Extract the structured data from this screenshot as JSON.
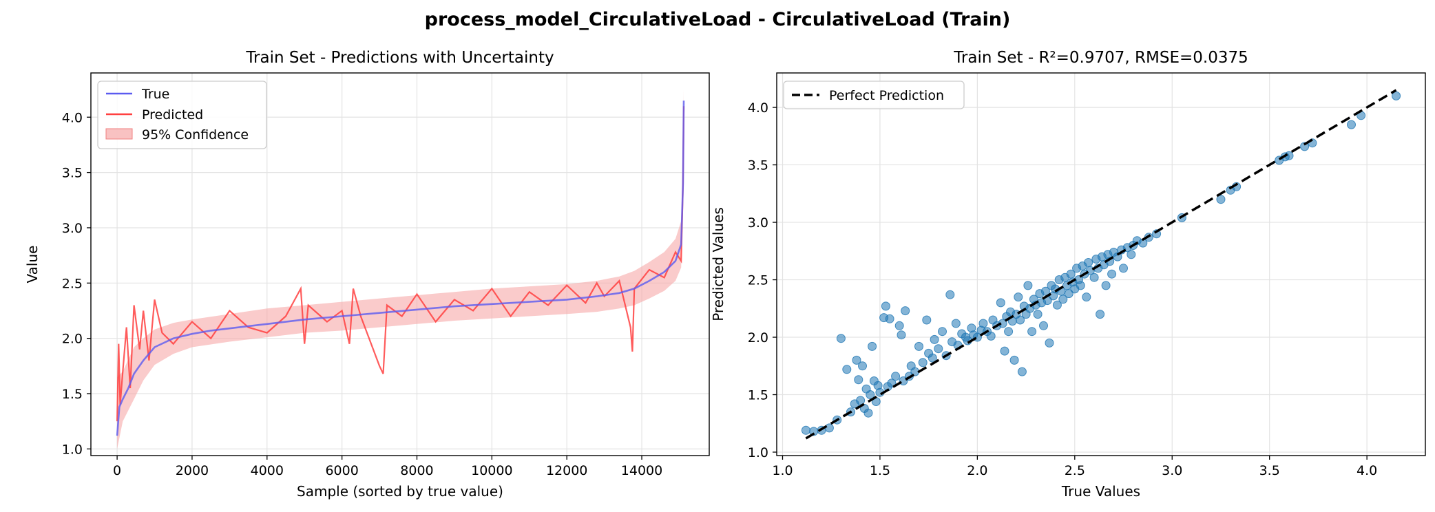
{
  "figure": {
    "title": "process_model_CirculativeLoad - CirculativeLoad (Train)"
  },
  "colors": {
    "true_line": "#5b5bf0",
    "predicted_line": "#ff4040",
    "confidence_band": "#f7a8a8",
    "scatter": "#1f77b4",
    "perfect_line": "#000000",
    "grid": "#e3e3e3"
  },
  "chart_data": [
    {
      "type": "line",
      "title": "Train Set - Predictions with Uncertainty",
      "xlabel": "Sample (sorted by true value)",
      "ylabel": "Value",
      "xlim": [
        -700,
        15800
      ],
      "ylim": [
        0.94,
        4.4
      ],
      "xticks": [
        0,
        2000,
        4000,
        6000,
        8000,
        10000,
        12000,
        14000
      ],
      "yticks": [
        1.0,
        1.5,
        2.0,
        2.5,
        3.0,
        3.5,
        4.0
      ],
      "grid": true,
      "legend": {
        "position": "top-left",
        "entries": [
          "True",
          "Predicted",
          "95% Confidence"
        ]
      },
      "series": [
        {
          "name": "True",
          "x": [
            0,
            60,
            150,
            300,
            450,
            700,
            1000,
            1500,
            2000,
            2500,
            3000,
            4000,
            5000,
            6000,
            7000,
            8000,
            9000,
            10000,
            11000,
            12000,
            12800,
            13400,
            13800,
            14200,
            14600,
            14900,
            15050,
            15100,
            15120
          ],
          "values": [
            1.12,
            1.38,
            1.45,
            1.55,
            1.68,
            1.8,
            1.92,
            2.0,
            2.04,
            2.07,
            2.09,
            2.13,
            2.17,
            2.2,
            2.23,
            2.26,
            2.29,
            2.31,
            2.33,
            2.35,
            2.38,
            2.41,
            2.45,
            2.52,
            2.6,
            2.7,
            2.85,
            3.4,
            4.15
          ]
        },
        {
          "name": "Predicted",
          "x": [
            0,
            40,
            80,
            150,
            250,
            350,
            450,
            600,
            700,
            850,
            1000,
            1200,
            1500,
            2000,
            2500,
            3000,
            3500,
            4000,
            4500,
            4900,
            5000,
            5100,
            5600,
            6000,
            6200,
            6300,
            6500,
            7000,
            7100,
            7200,
            7600,
            8000,
            8500,
            9000,
            9500,
            10000,
            10500,
            11000,
            11500,
            12000,
            12500,
            12800,
            13000,
            13400,
            13700,
            13750,
            13800,
            14200,
            14600,
            14900,
            15050,
            15100,
            15120
          ],
          "values": [
            1.25,
            1.95,
            1.4,
            1.7,
            2.1,
            1.55,
            2.3,
            1.9,
            2.25,
            1.8,
            2.35,
            2.05,
            1.95,
            2.15,
            2.0,
            2.25,
            2.1,
            2.05,
            2.2,
            2.45,
            1.95,
            2.3,
            2.15,
            2.25,
            1.95,
            2.45,
            2.2,
            1.75,
            1.68,
            2.3,
            2.2,
            2.4,
            2.15,
            2.35,
            2.25,
            2.45,
            2.2,
            2.42,
            2.3,
            2.48,
            2.32,
            2.5,
            2.38,
            2.52,
            2.1,
            1.88,
            2.45,
            2.62,
            2.55,
            2.78,
            2.7,
            3.4,
            4.1
          ]
        },
        {
          "name": "95% Confidence",
          "x": [
            0,
            150,
            450,
            700,
            1000,
            1500,
            2000,
            3000,
            4000,
            5000,
            6000,
            7000,
            8000,
            9000,
            10000,
            11000,
            12000,
            12800,
            13400,
            13800,
            14200,
            14600,
            14900,
            15050,
            15100,
            15120
          ],
          "lower": [
            1.0,
            1.25,
            1.45,
            1.62,
            1.76,
            1.86,
            1.92,
            1.97,
            2.01,
            2.05,
            2.07,
            2.1,
            2.13,
            2.16,
            2.18,
            2.2,
            2.22,
            2.24,
            2.27,
            2.3,
            2.36,
            2.43,
            2.52,
            2.64,
            3.15,
            3.95
          ],
          "upper": [
            1.65,
            1.7,
            1.92,
            2.0,
            2.08,
            2.14,
            2.17,
            2.22,
            2.27,
            2.3,
            2.33,
            2.36,
            2.39,
            2.42,
            2.45,
            2.47,
            2.49,
            2.52,
            2.56,
            2.61,
            2.69,
            2.78,
            2.9,
            3.06,
            3.65,
            4.25
          ]
        }
      ]
    },
    {
      "type": "scatter",
      "title": "Train Set - R²=0.9707, RMSE=0.0375",
      "xlabel": "True Values",
      "ylabel": "Predicted Values",
      "xlim": [
        0.97,
        4.3
      ],
      "ylim": [
        0.97,
        4.3
      ],
      "xticks": [
        1.0,
        1.5,
        2.0,
        2.5,
        3.0,
        3.5,
        4.0
      ],
      "yticks": [
        1.0,
        1.5,
        2.0,
        2.5,
        3.0,
        3.5,
        4.0
      ],
      "grid": true,
      "legend": {
        "position": "top-left",
        "entries": [
          "Perfect Prediction"
        ]
      },
      "perfect_line": [
        [
          1.12,
          1.12
        ],
        [
          4.15,
          4.15
        ]
      ],
      "series": [
        {
          "name": "",
          "points": [
            [
              1.12,
              1.19
            ],
            [
              1.16,
              1.18
            ],
            [
              1.2,
              1.19
            ],
            [
              1.24,
              1.21
            ],
            [
              1.28,
              1.28
            ],
            [
              1.3,
              1.99
            ],
            [
              1.33,
              1.72
            ],
            [
              1.35,
              1.35
            ],
            [
              1.37,
              1.42
            ],
            [
              1.38,
              1.8
            ],
            [
              1.39,
              1.63
            ],
            [
              1.4,
              1.45
            ],
            [
              1.41,
              1.75
            ],
            [
              1.42,
              1.38
            ],
            [
              1.43,
              1.55
            ],
            [
              1.44,
              1.34
            ],
            [
              1.45,
              1.5
            ],
            [
              1.46,
              1.92
            ],
            [
              1.47,
              1.62
            ],
            [
              1.48,
              1.44
            ],
            [
              1.49,
              1.58
            ],
            [
              1.5,
              1.52
            ],
            [
              1.52,
              2.17
            ],
            [
              1.53,
              2.27
            ],
            [
              1.54,
              1.57
            ],
            [
              1.55,
              2.16
            ],
            [
              1.56,
              1.6
            ],
            [
              1.58,
              1.66
            ],
            [
              1.6,
              2.1
            ],
            [
              1.61,
              2.02
            ],
            [
              1.62,
              1.62
            ],
            [
              1.63,
              2.23
            ],
            [
              1.65,
              1.66
            ],
            [
              1.66,
              1.75
            ],
            [
              1.68,
              1.7
            ],
            [
              1.7,
              1.92
            ],
            [
              1.72,
              1.78
            ],
            [
              1.74,
              2.15
            ],
            [
              1.75,
              1.86
            ],
            [
              1.77,
              1.82
            ],
            [
              1.78,
              1.98
            ],
            [
              1.8,
              1.9
            ],
            [
              1.82,
              2.05
            ],
            [
              1.84,
              1.84
            ],
            [
              1.86,
              2.37
            ],
            [
              1.87,
              1.96
            ],
            [
              1.89,
              2.12
            ],
            [
              1.9,
              1.93
            ],
            [
              1.92,
              2.03
            ],
            [
              1.94,
              2.0
            ],
            [
              1.95,
              1.97
            ],
            [
              1.97,
              2.08
            ],
            [
              1.98,
              2.02
            ],
            [
              2.0,
              2.0
            ],
            [
              2.02,
              2.06
            ],
            [
              2.03,
              2.12
            ],
            [
              2.05,
              2.05
            ],
            [
              2.07,
              2.01
            ],
            [
              2.08,
              2.15
            ],
            [
              2.1,
              2.1
            ],
            [
              2.12,
              2.3
            ],
            [
              2.13,
              2.12
            ],
            [
              2.14,
              1.88
            ],
            [
              2.15,
              2.18
            ],
            [
              2.16,
              2.05
            ],
            [
              2.17,
              2.22
            ],
            [
              2.18,
              2.14
            ],
            [
              2.19,
              1.8
            ],
            [
              2.2,
              2.2
            ],
            [
              2.21,
              2.35
            ],
            [
              2.22,
              2.15
            ],
            [
              2.23,
              1.7
            ],
            [
              2.24,
              2.27
            ],
            [
              2.25,
              2.2
            ],
            [
              2.26,
              2.45
            ],
            [
              2.27,
              2.25
            ],
            [
              2.28,
              2.05
            ],
            [
              2.29,
              2.33
            ],
            [
              2.3,
              2.28
            ],
            [
              2.31,
              2.2
            ],
            [
              2.32,
              2.38
            ],
            [
              2.33,
              2.3
            ],
            [
              2.34,
              2.1
            ],
            [
              2.35,
              2.4
            ],
            [
              2.36,
              2.32
            ],
            [
              2.37,
              1.95
            ],
            [
              2.38,
              2.45
            ],
            [
              2.39,
              2.36
            ],
            [
              2.4,
              2.42
            ],
            [
              2.41,
              2.28
            ],
            [
              2.42,
              2.5
            ],
            [
              2.43,
              2.4
            ],
            [
              2.44,
              2.33
            ],
            [
              2.45,
              2.52
            ],
            [
              2.46,
              2.45
            ],
            [
              2.47,
              2.38
            ],
            [
              2.48,
              2.55
            ],
            [
              2.49,
              2.48
            ],
            [
              2.5,
              2.42
            ],
            [
              2.51,
              2.6
            ],
            [
              2.52,
              2.5
            ],
            [
              2.53,
              2.45
            ],
            [
              2.54,
              2.62
            ],
            [
              2.55,
              2.55
            ],
            [
              2.56,
              2.35
            ],
            [
              2.57,
              2.65
            ],
            [
              2.58,
              2.58
            ],
            [
              2.6,
              2.52
            ],
            [
              2.61,
              2.68
            ],
            [
              2.62,
              2.6
            ],
            [
              2.63,
              2.2
            ],
            [
              2.64,
              2.7
            ],
            [
              2.65,
              2.63
            ],
            [
              2.66,
              2.45
            ],
            [
              2.67,
              2.72
            ],
            [
              2.68,
              2.66
            ],
            [
              2.69,
              2.55
            ],
            [
              2.7,
              2.74
            ],
            [
              2.72,
              2.7
            ],
            [
              2.74,
              2.76
            ],
            [
              2.75,
              2.6
            ],
            [
              2.77,
              2.78
            ],
            [
              2.79,
              2.72
            ],
            [
              2.8,
              2.8
            ],
            [
              2.82,
              2.84
            ],
            [
              2.85,
              2.82
            ],
            [
              2.88,
              2.87
            ],
            [
              2.92,
              2.9
            ],
            [
              3.05,
              3.04
            ],
            [
              3.25,
              3.2
            ],
            [
              3.3,
              3.28
            ],
            [
              3.33,
              3.31
            ],
            [
              3.55,
              3.54
            ],
            [
              3.58,
              3.57
            ],
            [
              3.6,
              3.58
            ],
            [
              3.68,
              3.66
            ],
            [
              3.72,
              3.69
            ],
            [
              3.92,
              3.85
            ],
            [
              3.97,
              3.93
            ],
            [
              4.15,
              4.1
            ]
          ]
        }
      ]
    }
  ]
}
